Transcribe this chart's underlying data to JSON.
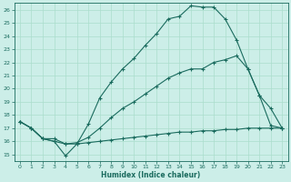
{
  "xlabel": "Humidex (Indice chaleur)",
  "bg_color": "#cceee8",
  "line_color": "#1a6b5e",
  "grid_color": "#aaddcc",
  "xlim": [
    -0.5,
    23.5
  ],
  "ylim": [
    14.5,
    26.5
  ],
  "xticks": [
    0,
    1,
    2,
    3,
    4,
    5,
    6,
    7,
    8,
    9,
    10,
    11,
    12,
    13,
    14,
    15,
    16,
    17,
    18,
    19,
    20,
    21,
    22,
    23
  ],
  "yticks": [
    15,
    16,
    17,
    18,
    19,
    20,
    21,
    22,
    23,
    24,
    25,
    26
  ],
  "series1_x": [
    0,
    1,
    2,
    3,
    4,
    5,
    6,
    7,
    8,
    9,
    10,
    11,
    12,
    13,
    14,
    15,
    16,
    17,
    18,
    19,
    20,
    21,
    22,
    23
  ],
  "series1_y": [
    17.5,
    17.0,
    16.2,
    16.0,
    14.9,
    15.8,
    17.3,
    19.3,
    20.5,
    21.5,
    22.3,
    23.3,
    24.2,
    25.3,
    25.5,
    26.3,
    26.2,
    26.2,
    25.3,
    23.7,
    21.5,
    19.5,
    18.5,
    17.0
  ],
  "series2_x": [
    0,
    1,
    2,
    3,
    4,
    5,
    6,
    7,
    8,
    9,
    10,
    11,
    12,
    13,
    14,
    15,
    16,
    17,
    18,
    19,
    20,
    21,
    22,
    23
  ],
  "series2_y": [
    17.5,
    17.0,
    16.2,
    16.2,
    15.8,
    15.9,
    16.3,
    17.0,
    17.8,
    18.5,
    19.0,
    19.6,
    20.2,
    20.8,
    21.2,
    21.5,
    21.5,
    22.0,
    22.2,
    22.5,
    21.5,
    19.5,
    17.2,
    17.0
  ],
  "series3_x": [
    0,
    1,
    2,
    3,
    4,
    5,
    6,
    7,
    8,
    9,
    10,
    11,
    12,
    13,
    14,
    15,
    16,
    17,
    18,
    19,
    20,
    21,
    22,
    23
  ],
  "series3_y": [
    17.5,
    17.0,
    16.2,
    16.0,
    15.8,
    15.8,
    15.9,
    16.0,
    16.1,
    16.2,
    16.3,
    16.4,
    16.5,
    16.6,
    16.7,
    16.7,
    16.8,
    16.8,
    16.9,
    16.9,
    17.0,
    17.0,
    17.0,
    17.0
  ]
}
